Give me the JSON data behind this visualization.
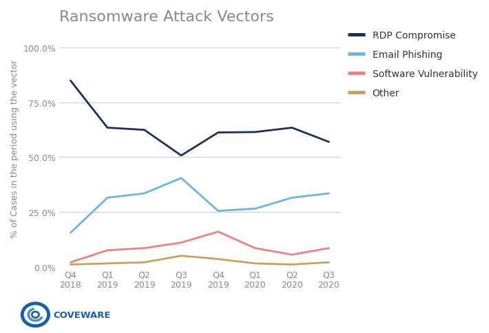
{
  "title": "Ransomware Attack Vectors",
  "ylabel": "% of Cases in the period using the vector",
  "x_labels": [
    "Q4\n2018",
    "Q1\n2019",
    "Q2\n2019",
    "Q3\n2019",
    "Q4\n2019",
    "Q1\n2020",
    "Q2\n2020",
    "Q3\n2020"
  ],
  "x_values": [
    0,
    1,
    2,
    3,
    4,
    5,
    6,
    7
  ],
  "series": {
    "RDP Compromise": {
      "values": [
        0.85,
        0.635,
        0.625,
        0.508,
        0.613,
        0.615,
        0.635,
        0.57
      ],
      "color": "#1a2f5e",
      "linewidth": 2.0
    },
    "Email Phishing": {
      "values": [
        0.155,
        0.315,
        0.335,
        0.405,
        0.255,
        0.265,
        0.315,
        0.335
      ],
      "color": "#6ab4e0",
      "linewidth": 2.0
    },
    "Software Vulnerability": {
      "values": [
        0.02,
        0.075,
        0.085,
        0.11,
        0.16,
        0.085,
        0.055,
        0.085
      ],
      "color": "#f08080",
      "linewidth": 2.0
    },
    "Other": {
      "values": [
        0.01,
        0.015,
        0.02,
        0.05,
        0.035,
        0.015,
        0.01,
        0.02
      ],
      "color": "#c8a060",
      "linewidth": 2.0
    }
  },
  "ylim": [
    0.0,
    1.08
  ],
  "yticks": [
    0.0,
    0.25,
    0.5,
    0.75,
    1.0
  ],
  "ytick_labels": [
    "0.0%",
    "25.0%",
    "50.0%",
    "75.0%",
    "100.0%"
  ],
  "background_color": "#ffffff",
  "grid_color": "#cccccc",
  "title_fontsize": 16,
  "axis_label_fontsize": 9,
  "tick_fontsize": 9,
  "legend_fontsize": 10,
  "title_color": "#888888",
  "tick_color": "#888888",
  "label_color": "#888888"
}
